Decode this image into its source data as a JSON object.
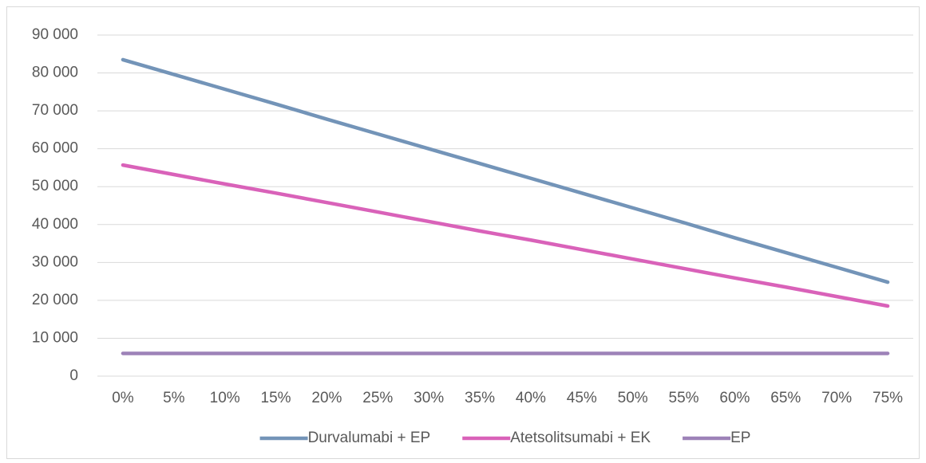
{
  "chart_data": {
    "type": "line",
    "categories": [
      "0%",
      "5%",
      "10%",
      "15%",
      "20%",
      "25%",
      "30%",
      "35%",
      "40%",
      "45%",
      "50%",
      "55%",
      "60%",
      "65%",
      "70%",
      "75%"
    ],
    "series": [
      {
        "name": "Durvalumabi + EP",
        "color": "#7394b8",
        "values": [
          83500,
          79600,
          75700,
          71800,
          67800,
          63900,
          60000,
          56100,
          52200,
          48300,
          44400,
          40500,
          36500,
          32600,
          28700,
          24800
        ]
      },
      {
        "name": "Atetsolitsumabi + EK",
        "color": "#d962b9",
        "values": [
          55700,
          53200,
          50700,
          48300,
          45800,
          43300,
          40800,
          38300,
          35900,
          33400,
          30900,
          28400,
          25900,
          23500,
          21000,
          18500
        ]
      },
      {
        "name": "EP",
        "color": "#9d82b8",
        "values": [
          6000,
          6000,
          6000,
          6000,
          6000,
          6000,
          6000,
          6000,
          6000,
          6000,
          6000,
          6000,
          6000,
          6000,
          6000,
          6000
        ]
      }
    ],
    "ylim": [
      0,
      90000
    ],
    "yticks": [
      0,
      {
        "value": 10000,
        "label": "10 000"
      },
      {
        "value": 20000,
        "label": "20 000"
      },
      {
        "value": 30000,
        "label": "30 000"
      },
      {
        "value": 40000,
        "label": "40 000"
      },
      {
        "value": 50000,
        "label": "50 000"
      },
      {
        "value": 60000,
        "label": "60 000"
      },
      {
        "value": 70000,
        "label": "70 000"
      },
      {
        "value": 80000,
        "label": "80 000"
      },
      {
        "value": 90000,
        "label": "90 000"
      }
    ],
    "grid": true,
    "legend": "bottom"
  }
}
